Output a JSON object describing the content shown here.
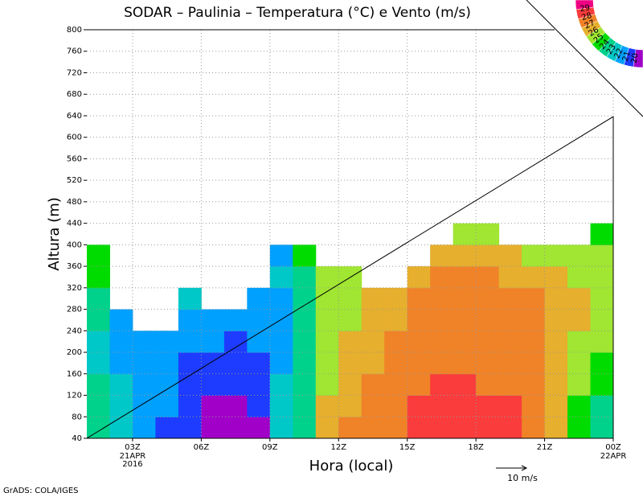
{
  "chart_data": {
    "type": "contour",
    "title": "SODAR – Paulinia – Temperatura (°C) e Vento (m/s)",
    "xlabel": "Hora (local)",
    "ylabel": "Altura (m)",
    "credit": "GrADS: COLA/IGES",
    "wind_scale_label": "10 m/s",
    "colorbar_unit": "°C",
    "date_labels": [
      {
        "x": 3,
        "lines": [
          "21APR",
          "2016"
        ]
      },
      {
        "x": 24,
        "lines": [
          "22APR"
        ]
      }
    ],
    "xlim": [
      1,
      24
    ],
    "ylim": [
      40,
      800
    ],
    "xticks": [
      {
        "value": 3,
        "label": "03Z"
      },
      {
        "value": 6,
        "label": "06Z"
      },
      {
        "value": 9,
        "label": "09Z"
      },
      {
        "value": 12,
        "label": "12Z"
      },
      {
        "value": 15,
        "label": "15Z"
      },
      {
        "value": 18,
        "label": "18Z"
      },
      {
        "value": 21,
        "label": "21Z"
      },
      {
        "value": 24,
        "label": "00Z"
      }
    ],
    "yticks": [
      40,
      80,
      120,
      160,
      200,
      240,
      280,
      320,
      360,
      400,
      440,
      480,
      520,
      560,
      600,
      640,
      680,
      720,
      760,
      800
    ],
    "grid": true,
    "x": [
      1.5,
      2.5,
      3.5,
      4.5,
      5.5,
      6.5,
      7.5,
      8.5,
      9.5,
      10.5,
      11.5,
      12.5,
      13.5,
      14.5,
      15.5,
      16.5,
      17.5,
      18.5,
      19.5,
      20.5,
      21.5,
      22.5,
      23.5
    ],
    "heights": [
      60,
      100,
      140,
      180,
      220,
      260,
      300,
      340,
      380,
      420
    ],
    "values": [
      [
        24,
        24,
        24,
        23,
        23,
        24,
        24,
        25,
        25,
        null
      ],
      [
        23,
        23,
        23,
        22,
        22,
        22,
        null,
        null,
        null,
        null
      ],
      [
        22,
        22,
        22,
        22,
        22,
        null,
        null,
        null,
        null,
        null
      ],
      [
        21,
        22,
        22,
        22,
        22,
        null,
        null,
        null,
        null,
        null
      ],
      [
        21,
        21,
        21,
        21,
        22,
        22,
        23,
        null,
        null,
        null
      ],
      [
        20,
        20,
        21,
        21,
        22,
        22,
        null,
        null,
        null,
        null
      ],
      [
        20,
        20,
        21,
        21,
        21,
        22,
        null,
        null,
        null,
        null
      ],
      [
        20,
        21,
        21,
        21,
        22,
        22,
        22,
        null,
        null,
        null
      ],
      [
        23,
        23,
        23,
        22,
        22,
        22,
        22,
        23,
        22,
        null
      ],
      [
        24,
        24,
        24,
        24,
        24,
        24,
        24,
        24,
        25,
        null
      ],
      [
        27,
        27,
        26,
        26,
        26,
        26,
        26,
        26,
        null,
        null
      ],
      [
        28,
        27,
        27,
        27,
        27,
        26,
        26,
        26,
        null,
        null
      ],
      [
        28,
        28,
        28,
        27,
        27,
        27,
        27,
        null,
        null,
        null
      ],
      [
        28,
        28,
        28,
        28,
        28,
        27,
        27,
        null,
        null,
        null
      ],
      [
        29,
        29,
        28,
        28,
        28,
        28,
        28,
        27,
        null,
        null
      ],
      [
        29,
        29,
        29,
        28,
        28,
        28,
        28,
        28,
        27,
        null
      ],
      [
        29,
        29,
        29,
        28,
        28,
        28,
        28,
        28,
        27,
        26
      ],
      [
        29,
        29,
        28,
        28,
        28,
        28,
        28,
        28,
        27,
        26
      ],
      [
        29,
        29,
        28,
        28,
        28,
        28,
        28,
        27,
        27,
        null
      ],
      [
        28,
        28,
        28,
        28,
        28,
        28,
        28,
        27,
        26,
        null
      ],
      [
        27,
        27,
        27,
        27,
        27,
        27,
        27,
        27,
        26,
        null
      ],
      [
        25,
        25,
        26,
        26,
        26,
        27,
        27,
        26,
        26,
        null
      ],
      [
        24,
        24,
        25,
        25,
        26,
        26,
        26,
        26,
        26,
        25
      ]
    ],
    "cell_width": 1,
    "cell_height": 40,
    "levels": [
      20,
      21,
      22,
      23,
      24,
      25,
      26,
      27,
      28,
      29
    ],
    "colors": [
      "#a000c8",
      "#1e3cff",
      "#00a0ff",
      "#00c8c8",
      "#00d28c",
      "#00dc00",
      "#a0e632",
      "#e6af2d",
      "#f08228",
      "#fa3c3c",
      "#f00082"
    ]
  }
}
